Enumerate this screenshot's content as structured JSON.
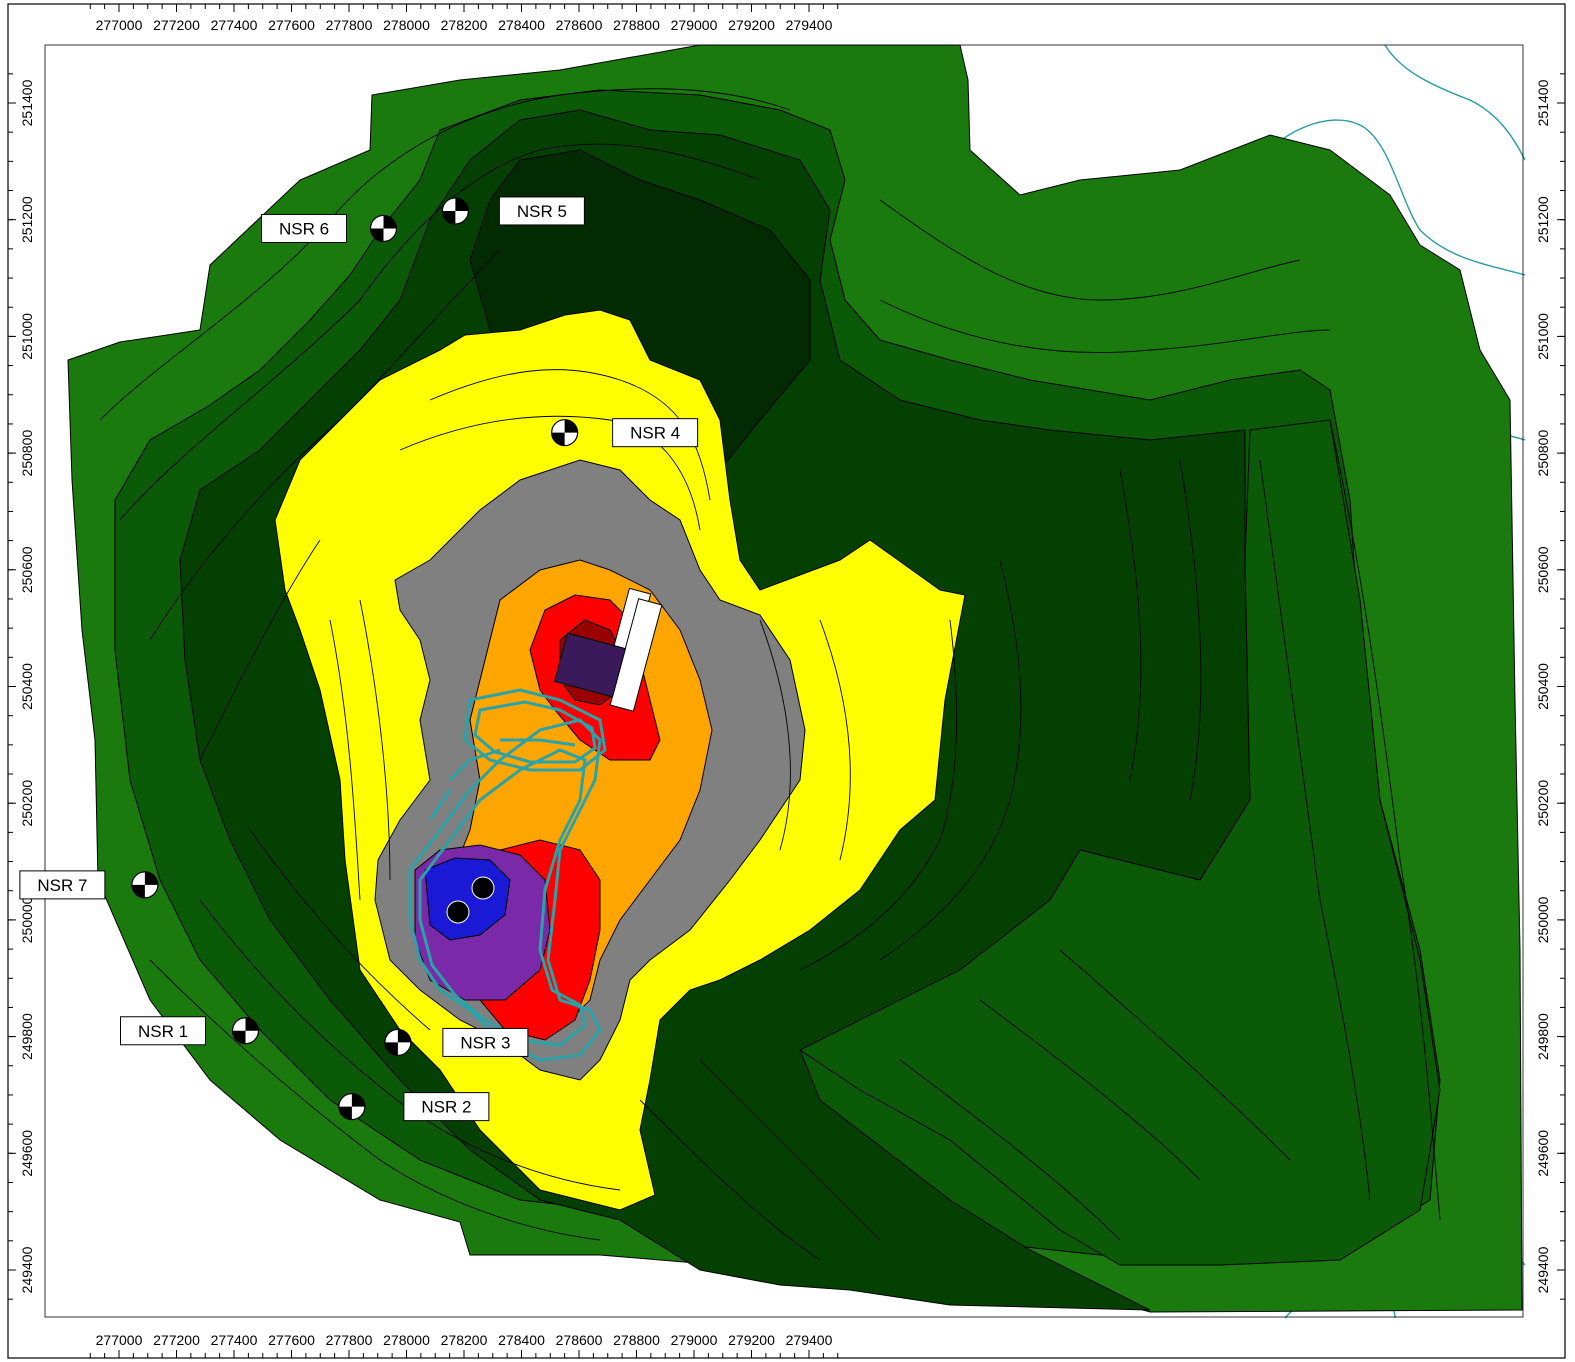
{
  "map": {
    "x_ticks": [
      "277000",
      "277200",
      "277400",
      "277600",
      "277800",
      "278000",
      "278200",
      "278400",
      "278600",
      "278800",
      "279000",
      "279200",
      "279400"
    ],
    "y_ticks": [
      "251400",
      "251200",
      "251000",
      "250800",
      "250600",
      "250400",
      "250200",
      "250000",
      "249800",
      "249600",
      "249400"
    ],
    "x_tick_values": [
      277000,
      277200,
      277400,
      277600,
      277800,
      278000,
      278200,
      278400,
      278600,
      278800,
      279000,
      279200,
      279400
    ],
    "y_tick_values": [
      251400,
      251200,
      251000,
      250800,
      250600,
      250400,
      250200,
      250000,
      249800,
      249600,
      249400
    ],
    "receivers": [
      {
        "id": "nsr-1",
        "label": "NSR 1",
        "easting": 277440,
        "northing": 249810
      },
      {
        "id": "nsr-2",
        "label": "NSR 2",
        "easting": 277810,
        "northing": 249680
      },
      {
        "id": "nsr-3",
        "label": "NSR 3",
        "easting": 277970,
        "northing": 249790
      },
      {
        "id": "nsr-4",
        "label": "NSR 4",
        "easting": 278550,
        "northing": 250835
      },
      {
        "id": "nsr-5",
        "label": "NSR 5",
        "easting": 278170,
        "northing": 251215
      },
      {
        "id": "nsr-6",
        "label": "NSR 6",
        "easting": 277920,
        "northing": 251185
      },
      {
        "id": "nsr-7",
        "label": "NSR 7",
        "easting": 277090,
        "northing": 250060
      }
    ],
    "colors": {
      "background": "#ffffff",
      "frame": "#000000",
      "green_outer": "#1a7a0e",
      "green_mid": "#0b5a08",
      "green_dark": "#054003",
      "green_darkest": "#032b02",
      "yellow": "#ffff00",
      "gray": "#808080",
      "orange": "#ffa500",
      "red": "#ff0000",
      "dark_red": "#9b0000",
      "purple": "#7a2aa8",
      "blue": "#1a1ad6",
      "haul_road": "#2aa3a8",
      "contour": "#000000",
      "watercourse": "#2a9ba3"
    }
  }
}
